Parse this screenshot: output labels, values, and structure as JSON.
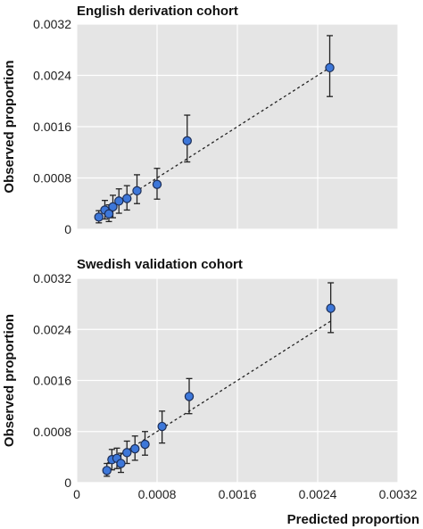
{
  "figure": {
    "ylabel": "Observed proportion",
    "xlabel": "Predicted proportion",
    "tick_labels": [
      "0",
      "0.0008",
      "0.0016",
      "0.0024",
      "0.0032"
    ],
    "point_color": "#3d77d9",
    "panel_color": "#e5e5e5"
  },
  "chart_data": [
    {
      "type": "scatter",
      "title": "English derivation cohort",
      "xlabel": "",
      "ylabel": "Observed proportion",
      "xlim": [
        0,
        0.0032
      ],
      "ylim": [
        0,
        0.0032
      ],
      "grid": true,
      "reference_line": "y = x",
      "points": [
        {
          "x": 0.00022,
          "y": 0.00019,
          "lo": 0.0001,
          "hi": 0.00029
        },
        {
          "x": 0.00028,
          "y": 0.0003,
          "lo": 0.00016,
          "hi": 0.00045
        },
        {
          "x": 0.00032,
          "y": 0.00024,
          "lo": 0.00012,
          "hi": 0.00038
        },
        {
          "x": 0.00036,
          "y": 0.00035,
          "lo": 0.00018,
          "hi": 0.00053
        },
        {
          "x": 0.00042,
          "y": 0.00044,
          "lo": 0.00025,
          "hi": 0.00063
        },
        {
          "x": 0.0005,
          "y": 0.00048,
          "lo": 0.0003,
          "hi": 0.00068
        },
        {
          "x": 0.0006,
          "y": 0.0006,
          "lo": 0.0004,
          "hi": 0.00085
        },
        {
          "x": 0.0008,
          "y": 0.0007,
          "lo": 0.00047,
          "hi": 0.00095
        },
        {
          "x": 0.0011,
          "y": 0.00138,
          "lo": 0.00105,
          "hi": 0.00178
        },
        {
          "x": 0.00252,
          "y": 0.00252,
          "lo": 0.00207,
          "hi": 0.00302
        }
      ]
    },
    {
      "type": "scatter",
      "title": "Swedish validation cohort",
      "xlabel": "Predicted proportion",
      "ylabel": "Observed proportion",
      "xlim": [
        0,
        0.0032
      ],
      "ylim": [
        0,
        0.0032
      ],
      "grid": true,
      "reference_line": "y = x",
      "points": [
        {
          "x": 0.0003,
          "y": 0.00019,
          "lo": 0.0001,
          "hi": 0.0003
        },
        {
          "x": 0.00035,
          "y": 0.00036,
          "lo": 0.0002,
          "hi": 0.00052
        },
        {
          "x": 0.0004,
          "y": 0.00038,
          "lo": 0.00022,
          "hi": 0.00054
        },
        {
          "x": 0.00044,
          "y": 0.0003,
          "lo": 0.00016,
          "hi": 0.00046
        },
        {
          "x": 0.0005,
          "y": 0.00047,
          "lo": 0.0003,
          "hi": 0.00065
        },
        {
          "x": 0.00058,
          "y": 0.00053,
          "lo": 0.00035,
          "hi": 0.00073
        },
        {
          "x": 0.00068,
          "y": 0.0006,
          "lo": 0.00043,
          "hi": 0.0008
        },
        {
          "x": 0.00085,
          "y": 0.00088,
          "lo": 0.00062,
          "hi": 0.00112
        },
        {
          "x": 0.00112,
          "y": 0.00135,
          "lo": 0.00108,
          "hi": 0.00163
        },
        {
          "x": 0.00253,
          "y": 0.00273,
          "lo": 0.00235,
          "hi": 0.00313
        }
      ]
    }
  ]
}
